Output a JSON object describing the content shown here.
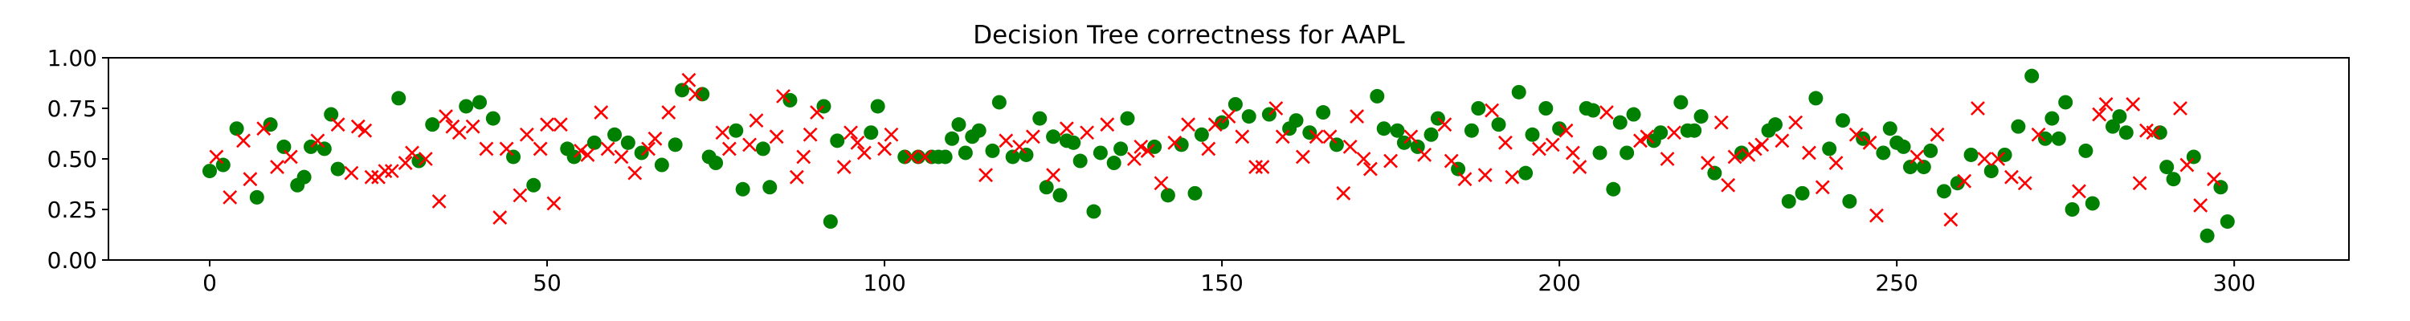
{
  "chart_data": {
    "type": "scatter",
    "title": "Decision Tree correctness for AAPL",
    "xlabel": "",
    "ylabel": "",
    "xlim": [
      -15,
      317
    ],
    "ylim": [
      0,
      1
    ],
    "grid": false,
    "legend": "none",
    "x_ticks": [
      0,
      50,
      100,
      150,
      200,
      250,
      300
    ],
    "x_tick_labels": [
      "0",
      "50",
      "100",
      "150",
      "200",
      "250",
      "300"
    ],
    "y_ticks": [
      0.0,
      0.25,
      0.5,
      0.75,
      1.0
    ],
    "y_tick_labels": [
      "0.00",
      "0.25",
      "0.50",
      "0.75",
      "1.00"
    ],
    "series": [
      {
        "marker": "circle",
        "color": "#008000",
        "points": [
          [
            0,
            0.44
          ],
          [
            2,
            0.47
          ],
          [
            4,
            0.65
          ],
          [
            7,
            0.31
          ],
          [
            9,
            0.67
          ],
          [
            11,
            0.56
          ],
          [
            13,
            0.37
          ],
          [
            14,
            0.41
          ],
          [
            15,
            0.56
          ],
          [
            17,
            0.55
          ],
          [
            18,
            0.72
          ],
          [
            19,
            0.45
          ],
          [
            28,
            0.8
          ],
          [
            31,
            0.49
          ],
          [
            33,
            0.67
          ],
          [
            38,
            0.76
          ],
          [
            40,
            0.78
          ],
          [
            42,
            0.7
          ],
          [
            45,
            0.51
          ],
          [
            48,
            0.37
          ],
          [
            53,
            0.55
          ],
          [
            54,
            0.51
          ],
          [
            57,
            0.58
          ],
          [
            60,
            0.62
          ],
          [
            62,
            0.58
          ],
          [
            64,
            0.53
          ],
          [
            67,
            0.47
          ],
          [
            69,
            0.57
          ],
          [
            70,
            0.84
          ],
          [
            73,
            0.82
          ],
          [
            74,
            0.51
          ],
          [
            75,
            0.48
          ],
          [
            78,
            0.64
          ],
          [
            79,
            0.35
          ],
          [
            82,
            0.55
          ],
          [
            83,
            0.36
          ],
          [
            86,
            0.79
          ],
          [
            91,
            0.76
          ],
          [
            92,
            0.19
          ],
          [
            93,
            0.59
          ],
          [
            98,
            0.63
          ],
          [
            99,
            0.76
          ],
          [
            103,
            0.51
          ],
          [
            105,
            0.51
          ],
          [
            107,
            0.51
          ],
          [
            108,
            0.51
          ],
          [
            109,
            0.51
          ],
          [
            110,
            0.6
          ],
          [
            111,
            0.67
          ],
          [
            112,
            0.53
          ],
          [
            113,
            0.61
          ],
          [
            114,
            0.64
          ],
          [
            116,
            0.54
          ],
          [
            117,
            0.78
          ],
          [
            119,
            0.51
          ],
          [
            121,
            0.52
          ],
          [
            123,
            0.7
          ],
          [
            124,
            0.36
          ],
          [
            125,
            0.61
          ],
          [
            126,
            0.32
          ],
          [
            127,
            0.59
          ],
          [
            128,
            0.58
          ],
          [
            129,
            0.49
          ],
          [
            131,
            0.24
          ],
          [
            132,
            0.53
          ],
          [
            134,
            0.48
          ],
          [
            135,
            0.55
          ],
          [
            136,
            0.7
          ],
          [
            140,
            0.56
          ],
          [
            142,
            0.32
          ],
          [
            144,
            0.57
          ],
          [
            146,
            0.33
          ],
          [
            147,
            0.62
          ],
          [
            150,
            0.68
          ],
          [
            152,
            0.77
          ],
          [
            154,
            0.71
          ],
          [
            157,
            0.72
          ],
          [
            160,
            0.65
          ],
          [
            161,
            0.69
          ],
          [
            163,
            0.63
          ],
          [
            165,
            0.73
          ],
          [
            167,
            0.57
          ],
          [
            173,
            0.81
          ],
          [
            174,
            0.65
          ],
          [
            176,
            0.64
          ],
          [
            177,
            0.58
          ],
          [
            179,
            0.56
          ],
          [
            181,
            0.62
          ],
          [
            182,
            0.7
          ],
          [
            185,
            0.45
          ],
          [
            187,
            0.64
          ],
          [
            188,
            0.75
          ],
          [
            191,
            0.67
          ],
          [
            194,
            0.83
          ],
          [
            195,
            0.43
          ],
          [
            196,
            0.62
          ],
          [
            198,
            0.75
          ],
          [
            200,
            0.65
          ],
          [
            204,
            0.75
          ],
          [
            205,
            0.74
          ],
          [
            206,
            0.53
          ],
          [
            208,
            0.35
          ],
          [
            209,
            0.68
          ],
          [
            210,
            0.53
          ],
          [
            211,
            0.72
          ],
          [
            214,
            0.59
          ],
          [
            215,
            0.63
          ],
          [
            218,
            0.78
          ],
          [
            219,
            0.64
          ],
          [
            220,
            0.64
          ],
          [
            221,
            0.71
          ],
          [
            223,
            0.43
          ],
          [
            227,
            0.53
          ],
          [
            231,
            0.64
          ],
          [
            232,
            0.67
          ],
          [
            234,
            0.29
          ],
          [
            236,
            0.33
          ],
          [
            238,
            0.8
          ],
          [
            240,
            0.55
          ],
          [
            242,
            0.69
          ],
          [
            243,
            0.29
          ],
          [
            245,
            0.6
          ],
          [
            248,
            0.53
          ],
          [
            249,
            0.65
          ],
          [
            250,
            0.58
          ],
          [
            251,
            0.56
          ],
          [
            252,
            0.46
          ],
          [
            254,
            0.46
          ],
          [
            255,
            0.54
          ],
          [
            257,
            0.34
          ],
          [
            259,
            0.38
          ],
          [
            261,
            0.52
          ],
          [
            264,
            0.44
          ],
          [
            266,
            0.52
          ],
          [
            268,
            0.66
          ],
          [
            270,
            0.91
          ],
          [
            272,
            0.6
          ],
          [
            273,
            0.7
          ],
          [
            274,
            0.6
          ],
          [
            275,
            0.78
          ],
          [
            276,
            0.25
          ],
          [
            278,
            0.54
          ],
          [
            279,
            0.28
          ],
          [
            282,
            0.66
          ],
          [
            283,
            0.71
          ],
          [
            284,
            0.63
          ],
          [
            289,
            0.63
          ],
          [
            290,
            0.46
          ],
          [
            291,
            0.4
          ],
          [
            294,
            0.51
          ],
          [
            296,
            0.12
          ],
          [
            298,
            0.36
          ],
          [
            299,
            0.19
          ]
        ]
      },
      {
        "marker": "x",
        "color": "#ff0000",
        "points": [
          [
            1,
            0.51
          ],
          [
            3,
            0.31
          ],
          [
            5,
            0.59
          ],
          [
            6,
            0.4
          ],
          [
            8,
            0.65
          ],
          [
            10,
            0.46
          ],
          [
            12,
            0.51
          ],
          [
            16,
            0.59
          ],
          [
            19,
            0.67
          ],
          [
            21,
            0.43
          ],
          [
            22,
            0.66
          ],
          [
            23,
            0.64
          ],
          [
            24,
            0.41
          ],
          [
            25,
            0.41
          ],
          [
            26,
            0.44
          ],
          [
            27,
            0.44
          ],
          [
            29,
            0.48
          ],
          [
            30,
            0.53
          ],
          [
            32,
            0.5
          ],
          [
            34,
            0.29
          ],
          [
            35,
            0.71
          ],
          [
            36,
            0.66
          ],
          [
            37,
            0.63
          ],
          [
            39,
            0.66
          ],
          [
            41,
            0.55
          ],
          [
            43,
            0.21
          ],
          [
            44,
            0.55
          ],
          [
            46,
            0.32
          ],
          [
            47,
            0.62
          ],
          [
            49,
            0.55
          ],
          [
            50,
            0.67
          ],
          [
            51,
            0.28
          ],
          [
            52,
            0.67
          ],
          [
            55,
            0.54
          ],
          [
            56,
            0.52
          ],
          [
            58,
            0.73
          ],
          [
            59,
            0.55
          ],
          [
            61,
            0.51
          ],
          [
            63,
            0.43
          ],
          [
            65,
            0.55
          ],
          [
            66,
            0.6
          ],
          [
            68,
            0.73
          ],
          [
            71,
            0.89
          ],
          [
            72,
            0.82
          ],
          [
            76,
            0.63
          ],
          [
            77,
            0.55
          ],
          [
            80,
            0.57
          ],
          [
            81,
            0.69
          ],
          [
            84,
            0.61
          ],
          [
            85,
            0.81
          ],
          [
            87,
            0.41
          ],
          [
            88,
            0.51
          ],
          [
            89,
            0.62
          ],
          [
            90,
            0.73
          ],
          [
            94,
            0.46
          ],
          [
            95,
            0.63
          ],
          [
            96,
            0.58
          ],
          [
            97,
            0.53
          ],
          [
            100,
            0.55
          ],
          [
            101,
            0.62
          ],
          [
            104,
            0.51
          ],
          [
            106,
            0.51
          ],
          [
            115,
            0.42
          ],
          [
            118,
            0.59
          ],
          [
            120,
            0.56
          ],
          [
            122,
            0.61
          ],
          [
            125,
            0.42
          ],
          [
            127,
            0.65
          ],
          [
            130,
            0.63
          ],
          [
            133,
            0.67
          ],
          [
            137,
            0.5
          ],
          [
            138,
            0.56
          ],
          [
            139,
            0.54
          ],
          [
            141,
            0.38
          ],
          [
            143,
            0.58
          ],
          [
            145,
            0.67
          ],
          [
            148,
            0.55
          ],
          [
            149,
            0.67
          ],
          [
            151,
            0.71
          ],
          [
            153,
            0.61
          ],
          [
            155,
            0.46
          ],
          [
            156,
            0.46
          ],
          [
            158,
            0.75
          ],
          [
            159,
            0.61
          ],
          [
            162,
            0.51
          ],
          [
            164,
            0.61
          ],
          [
            166,
            0.61
          ],
          [
            168,
            0.33
          ],
          [
            169,
            0.56
          ],
          [
            170,
            0.71
          ],
          [
            171,
            0.5
          ],
          [
            172,
            0.45
          ],
          [
            175,
            0.49
          ],
          [
            178,
            0.61
          ],
          [
            180,
            0.52
          ],
          [
            183,
            0.67
          ],
          [
            184,
            0.49
          ],
          [
            186,
            0.4
          ],
          [
            189,
            0.42
          ],
          [
            190,
            0.74
          ],
          [
            192,
            0.58
          ],
          [
            193,
            0.41
          ],
          [
            197,
            0.55
          ],
          [
            199,
            0.57
          ],
          [
            201,
            0.64
          ],
          [
            202,
            0.53
          ],
          [
            203,
            0.46
          ],
          [
            207,
            0.73
          ],
          [
            212,
            0.59
          ],
          [
            213,
            0.61
          ],
          [
            216,
            0.5
          ],
          [
            217,
            0.63
          ],
          [
            222,
            0.48
          ],
          [
            224,
            0.68
          ],
          [
            225,
            0.37
          ],
          [
            226,
            0.51
          ],
          [
            228,
            0.52
          ],
          [
            229,
            0.55
          ],
          [
            230,
            0.57
          ],
          [
            233,
            0.59
          ],
          [
            235,
            0.68
          ],
          [
            237,
            0.53
          ],
          [
            239,
            0.36
          ],
          [
            241,
            0.48
          ],
          [
            244,
            0.62
          ],
          [
            246,
            0.58
          ],
          [
            247,
            0.22
          ],
          [
            253,
            0.51
          ],
          [
            256,
            0.62
          ],
          [
            258,
            0.2
          ],
          [
            260,
            0.39
          ],
          [
            262,
            0.75
          ],
          [
            263,
            0.5
          ],
          [
            265,
            0.5
          ],
          [
            267,
            0.41
          ],
          [
            269,
            0.38
          ],
          [
            271,
            0.62
          ],
          [
            277,
            0.34
          ],
          [
            280,
            0.72
          ],
          [
            281,
            0.77
          ],
          [
            285,
            0.77
          ],
          [
            286,
            0.38
          ],
          [
            287,
            0.64
          ],
          [
            288,
            0.63
          ],
          [
            292,
            0.75
          ],
          [
            293,
            0.47
          ],
          [
            295,
            0.27
          ],
          [
            297,
            0.4
          ]
        ]
      }
    ]
  }
}
